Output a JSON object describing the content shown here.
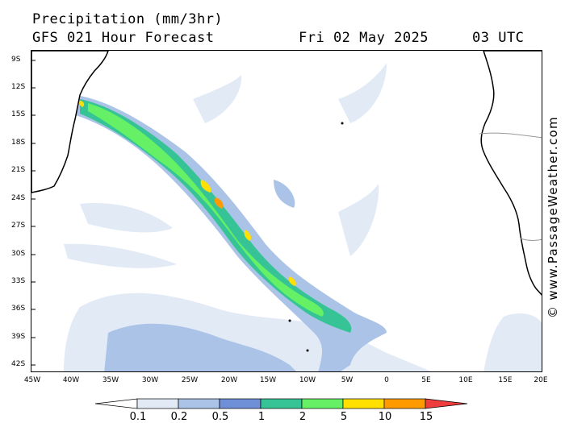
{
  "header": {
    "title": "Precipitation (mm/3hr)",
    "subtitle": "GFS 021 Hour Forecast",
    "date": "Fri 02 May 2025",
    "time": "03 UTC"
  },
  "map": {
    "lat_labels": [
      "9S",
      "12S",
      "15S",
      "18S",
      "21S",
      "24S",
      "27S",
      "30S",
      "33S",
      "36S",
      "39S",
      "42S"
    ],
    "lon_labels": [
      "45W",
      "40W",
      "35W",
      "30W",
      "25W",
      "20W",
      "15W",
      "10W",
      "5W",
      "0",
      "5E",
      "10E",
      "15E",
      "20E"
    ],
    "land_color": "#ffffff",
    "coast_color": "#000000"
  },
  "legend": {
    "values": [
      "0.1",
      "0.2",
      "0.5",
      "1",
      "2",
      "5",
      "10",
      "15"
    ],
    "colors": [
      "#ffffff",
      "#e2eaf6",
      "#abc3e6",
      "#6f8fd6",
      "#36c496",
      "#65f065",
      "#ffe000",
      "#ff9a00",
      "#ee3d3d"
    ]
  },
  "credit": "© www.PassageWeather.com"
}
